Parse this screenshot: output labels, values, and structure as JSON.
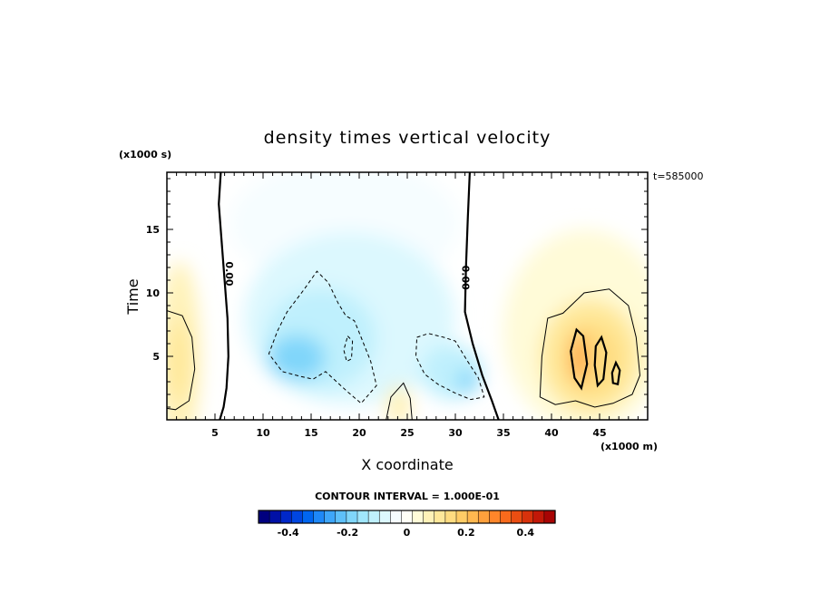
{
  "chart_data": {
    "type": "heatmap",
    "title": "density times vertical velocity",
    "xlabel": "X coordinate",
    "ylabel": "Time",
    "x_units": "(x1000 m)",
    "y_units": "(x1000 s)",
    "time_stamp": "t=585000",
    "xlim": [
      0,
      50
    ],
    "ylim": [
      0,
      19.5
    ],
    "x_ticks": [
      5,
      10,
      15,
      20,
      25,
      30,
      35,
      40,
      45
    ],
    "y_ticks": [
      5,
      10,
      15
    ],
    "contour_interval_text": "CONTOUR INTERVAL = 1.000E-01",
    "contour_zero_label": "0.00",
    "colorbar": {
      "range": [
        -0.5,
        0.5
      ],
      "tick_values": [
        -0.4,
        -0.2,
        0,
        0.2,
        0.4
      ],
      "tick_labels": [
        "-0.4",
        "-0.2",
        "0",
        "0.2",
        "0.4"
      ],
      "colors": [
        "#00007f",
        "#0010a6",
        "#0028c8",
        "#0046e0",
        "#0066f0",
        "#1e88f8",
        "#3ea6fa",
        "#5ec0fa",
        "#80d6fa",
        "#a0e6fc",
        "#bff0fd",
        "#dcf8fe",
        "#f6fdff",
        "#fffff6",
        "#fffbd8",
        "#fff2b8",
        "#ffe89a",
        "#ffdc80",
        "#ffcc66",
        "#ffb850",
        "#ffa03c",
        "#ff862a",
        "#f86a1c",
        "#ea4e12",
        "#d8320c",
        "#c21808",
        "#a80404"
      ]
    },
    "zero_contours": [
      {
        "name": "left",
        "points": [
          [
            5.5,
            0
          ],
          [
            5.9,
            1
          ],
          [
            6.2,
            2.5
          ],
          [
            6.4,
            5
          ],
          [
            6.3,
            8
          ],
          [
            6.0,
            11
          ],
          [
            5.7,
            14
          ],
          [
            5.4,
            17
          ],
          [
            5.6,
            19.5
          ]
        ]
      },
      {
        "name": "middle",
        "points": [
          [
            34.5,
            0
          ],
          [
            33.8,
            1.5
          ],
          [
            32.8,
            3.5
          ],
          [
            31.8,
            6
          ],
          [
            31.0,
            8.5
          ],
          [
            31.1,
            12
          ],
          [
            31.3,
            16
          ],
          [
            31.5,
            19.5
          ]
        ]
      }
    ],
    "negative_contours": [
      {
        "name": "dashed-main",
        "points": [
          [
            11.5,
            7
          ],
          [
            12.5,
            8.5
          ],
          [
            14.2,
            10.2
          ],
          [
            15.6,
            11.7
          ],
          [
            16.8,
            10.8
          ],
          [
            17.8,
            9.2
          ],
          [
            18.6,
            8.2
          ],
          [
            19.5,
            7.8
          ],
          [
            20.2,
            6.5
          ],
          [
            21.2,
            4.6
          ],
          [
            21.8,
            2.7
          ],
          [
            20.2,
            1.3
          ],
          [
            18.8,
            2.2
          ],
          [
            16.5,
            3.8
          ],
          [
            15.2,
            3.2
          ],
          [
            14.0,
            3.4
          ],
          [
            12.0,
            3.8
          ],
          [
            10.6,
            5.2
          ],
          [
            11.5,
            7
          ]
        ]
      },
      {
        "name": "dashed-right",
        "points": [
          [
            26.0,
            6.5
          ],
          [
            27.2,
            6.8
          ],
          [
            28.8,
            6.5
          ],
          [
            30.0,
            6.2
          ],
          [
            31.2,
            4.7
          ],
          [
            32.4,
            3.3
          ],
          [
            33.0,
            1.8
          ],
          [
            31.6,
            1.6
          ],
          [
            30.0,
            2.1
          ],
          [
            28.2,
            2.8
          ],
          [
            26.8,
            3.6
          ],
          [
            25.9,
            5.0
          ],
          [
            26.0,
            6.5
          ]
        ]
      },
      {
        "name": "dashed-small",
        "points": [
          [
            18.8,
            6.6
          ],
          [
            19.3,
            6.2
          ],
          [
            19.2,
            4.8
          ],
          [
            18.7,
            4.6
          ],
          [
            18.4,
            5.5
          ],
          [
            18.8,
            6.6
          ]
        ]
      }
    ],
    "positive_contours": [
      {
        "name": "left-edge",
        "points": [
          [
            0,
            8.6
          ],
          [
            1.6,
            8.2
          ],
          [
            2.6,
            6.5
          ],
          [
            2.9,
            4.0
          ],
          [
            2.3,
            1.5
          ],
          [
            0.9,
            0.8
          ],
          [
            0,
            0.9
          ]
        ]
      },
      {
        "name": "right-thin",
        "points": [
          [
            38.8,
            1.8
          ],
          [
            39.0,
            5.0
          ],
          [
            39.6,
            8.0
          ],
          [
            41.2,
            8.4
          ],
          [
            43.4,
            10.0
          ],
          [
            46.0,
            10.3
          ],
          [
            48.0,
            9.0
          ],
          [
            48.8,
            6.5
          ],
          [
            49.2,
            3.5
          ],
          [
            48.4,
            2.0
          ],
          [
            46.4,
            1.3
          ],
          [
            44.5,
            1.0
          ],
          [
            42.5,
            1.5
          ],
          [
            40.4,
            1.2
          ],
          [
            38.8,
            1.8
          ]
        ]
      },
      {
        "name": "bottom-bump",
        "points": [
          [
            22.8,
            0
          ],
          [
            23.3,
            1.8
          ],
          [
            24.6,
            2.9
          ],
          [
            25.3,
            1.7
          ],
          [
            25.5,
            0
          ]
        ]
      }
    ],
    "strong_positive_contours": [
      {
        "name": "cell-1",
        "points": [
          [
            42.6,
            7.1
          ],
          [
            43.3,
            6.6
          ],
          [
            43.7,
            4.4
          ],
          [
            43.1,
            2.5
          ],
          [
            42.4,
            3.3
          ],
          [
            42.0,
            5.4
          ],
          [
            42.6,
            7.1
          ]
        ]
      },
      {
        "name": "cell-2",
        "points": [
          [
            45.2,
            6.5
          ],
          [
            45.7,
            5.3
          ],
          [
            45.4,
            3.2
          ],
          [
            44.8,
            2.7
          ],
          [
            44.5,
            4.3
          ],
          [
            44.6,
            5.8
          ],
          [
            45.2,
            6.5
          ]
        ]
      },
      {
        "name": "cell-3",
        "points": [
          [
            46.7,
            4.5
          ],
          [
            47.1,
            3.9
          ],
          [
            46.9,
            2.8
          ],
          [
            46.4,
            2.9
          ],
          [
            46.3,
            3.7
          ],
          [
            46.7,
            4.5
          ]
        ]
      }
    ],
    "regions": [
      {
        "name": "left-warm",
        "cx": 1.3,
        "cy": 5.0,
        "rx": 2.2,
        "ry": 7.5,
        "value": 0.07
      },
      {
        "name": "left-warm-core",
        "cx": 1.2,
        "cy": 4.6,
        "rx": 1.3,
        "ry": 3.3,
        "value": 0.12
      },
      {
        "name": "upper-cold",
        "cx": 18.5,
        "cy": 15.5,
        "rx": 12.0,
        "ry": 5.0,
        "value": -0.03
      },
      {
        "name": "broad-cold",
        "cx": 19.0,
        "cy": 8.0,
        "rx": 11.0,
        "ry": 6.8,
        "value": -0.06
      },
      {
        "name": "main-cold",
        "cx": 16.0,
        "cy": 6.4,
        "rx": 5.8,
        "ry": 4.0,
        "value": -0.12
      },
      {
        "name": "main-cold-core",
        "cx": 13.5,
        "cy": 4.9,
        "rx": 3.0,
        "ry": 1.8,
        "value": -0.17
      },
      {
        "name": "right-cold",
        "cx": 29.6,
        "cy": 3.8,
        "rx": 3.2,
        "ry": 2.2,
        "value": -0.12
      },
      {
        "name": "right-cold-core",
        "cx": 31.3,
        "cy": 3.0,
        "rx": 1.1,
        "ry": 0.9,
        "value": -0.18
      },
      {
        "name": "right-warm-broad",
        "cx": 43.5,
        "cy": 7.0,
        "rx": 8.5,
        "ry": 8.0,
        "value": 0.04
      },
      {
        "name": "right-warm",
        "cx": 44.0,
        "cy": 5.0,
        "rx": 5.2,
        "ry": 4.5,
        "value": 0.1
      },
      {
        "name": "right-warm-mid",
        "cx": 44.2,
        "cy": 4.8,
        "rx": 3.0,
        "ry": 2.8,
        "value": 0.15
      },
      {
        "name": "right-warm-core",
        "cx": 42.9,
        "cy": 4.9,
        "rx": 0.8,
        "ry": 2.0,
        "value": 0.25
      },
      {
        "name": "bottom-warm",
        "cx": 24.1,
        "cy": 1.1,
        "rx": 1.3,
        "ry": 1.6,
        "value": 0.06
      }
    ]
  }
}
